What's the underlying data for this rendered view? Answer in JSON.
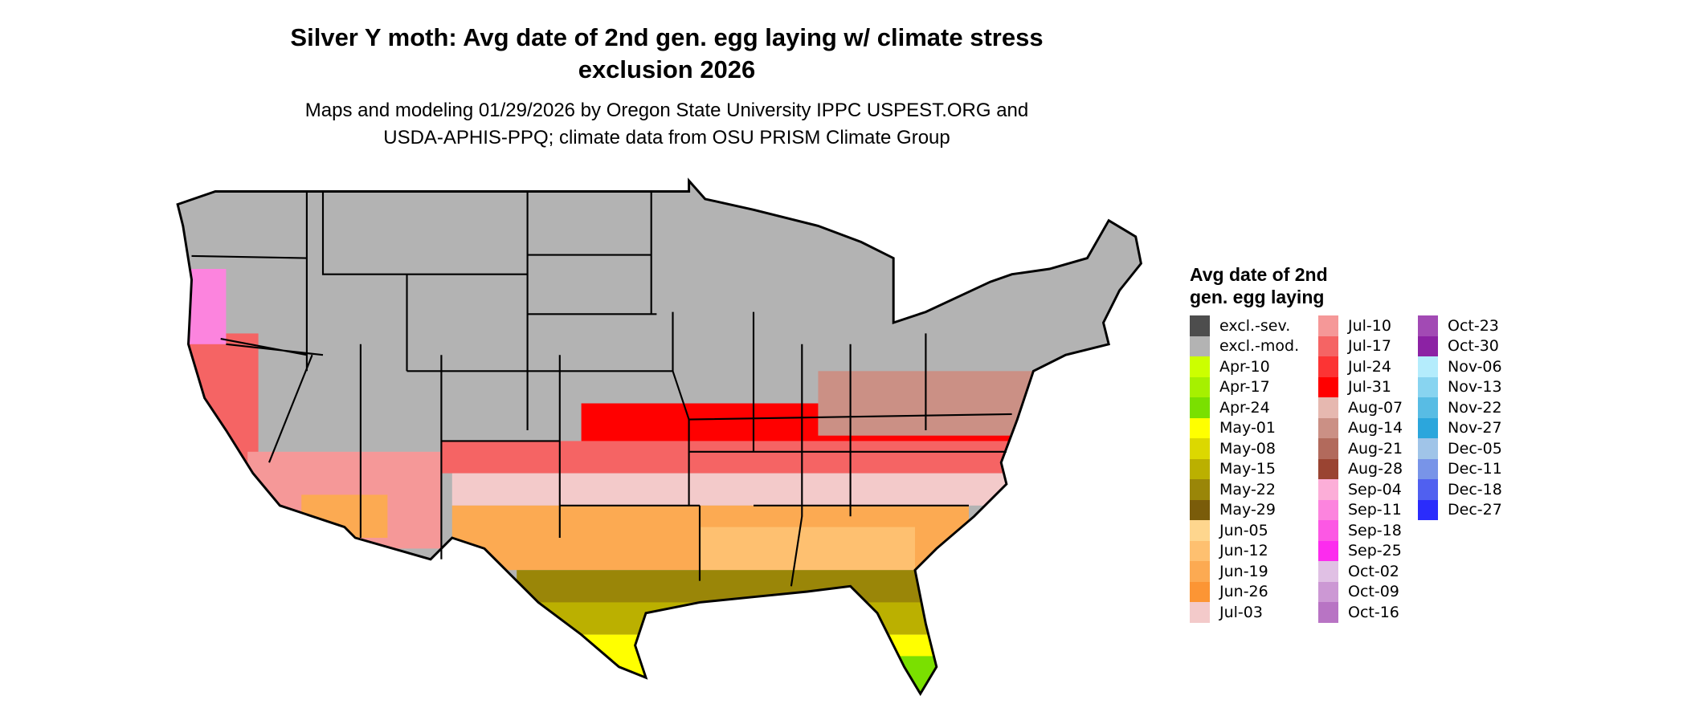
{
  "title": {
    "line1": "Silver Y moth: Avg date of 2nd gen. egg laying w/ climate stress",
    "line2": "exclusion 2026"
  },
  "subtitle": {
    "line1": "Maps and modeling 01/29/2026 by Oregon State University IPPC USPEST.ORG and",
    "line2": "USDA-APHIS-PPQ; climate data from OSU PRISM Climate Group"
  },
  "legend": {
    "title_line1": "Avg date of 2nd",
    "title_line2": "gen. egg laying",
    "columns": [
      [
        {
          "label": "excl.-sev.",
          "color": "#4d4d4d"
        },
        {
          "label": "excl.-mod.",
          "color": "#b3b3b3"
        },
        {
          "label": "Apr-10",
          "color": "#ccff00"
        },
        {
          "label": "Apr-17",
          "color": "#a6f000"
        },
        {
          "label": "Apr-24",
          "color": "#7ae000"
        },
        {
          "label": "May-01",
          "color": "#ffff00"
        },
        {
          "label": "May-08",
          "color": "#dcd800"
        },
        {
          "label": "May-15",
          "color": "#bbb000"
        },
        {
          "label": "May-22",
          "color": "#9a8608"
        },
        {
          "label": "May-29",
          "color": "#7a5c0a"
        },
        {
          "label": "Jun-05",
          "color": "#fed68e"
        },
        {
          "label": "Jun-12",
          "color": "#fec070"
        },
        {
          "label": "Jun-19",
          "color": "#fcaa52"
        },
        {
          "label": "Jun-26",
          "color": "#fc9534"
        },
        {
          "label": "Jul-03",
          "color": "#f3caca"
        }
      ],
      [
        {
          "label": "Jul-10",
          "color": "#f59898"
        },
        {
          "label": "Jul-17",
          "color": "#f56464"
        },
        {
          "label": "Jul-24",
          "color": "#fc3434"
        },
        {
          "label": "Jul-31",
          "color": "#ff0000"
        },
        {
          "label": "Aug-07",
          "color": "#e6b8b0"
        },
        {
          "label": "Aug-14",
          "color": "#cb9085"
        },
        {
          "label": "Aug-21",
          "color": "#b26a5c"
        },
        {
          "label": "Aug-28",
          "color": "#9a4432"
        },
        {
          "label": "Sep-04",
          "color": "#fcaed8"
        },
        {
          "label": "Sep-11",
          "color": "#fc84de"
        },
        {
          "label": "Sep-18",
          "color": "#fc58e4"
        },
        {
          "label": "Sep-25",
          "color": "#fc2cee"
        },
        {
          "label": "Oct-02",
          "color": "#e0c0e4"
        },
        {
          "label": "Oct-09",
          "color": "#cc98d4"
        },
        {
          "label": "Oct-16",
          "color": "#b874c4"
        }
      ],
      [
        {
          "label": "Oct-23",
          "color": "#a24ab4"
        },
        {
          "label": "Oct-30",
          "color": "#8c22a4"
        },
        {
          "label": "Nov-06",
          "color": "#b4ecfc"
        },
        {
          "label": "Nov-13",
          "color": "#88d4f0"
        },
        {
          "label": "Nov-22",
          "color": "#58bce4"
        },
        {
          "label": "Nov-27",
          "color": "#2ca6dc"
        },
        {
          "label": "Dec-05",
          "color": "#a0c4e8"
        },
        {
          "label": "Dec-11",
          "color": "#7894e8"
        },
        {
          "label": "Dec-18",
          "color": "#5060f0"
        },
        {
          "label": "Dec-27",
          "color": "#2a2cfc"
        }
      ]
    ]
  }
}
